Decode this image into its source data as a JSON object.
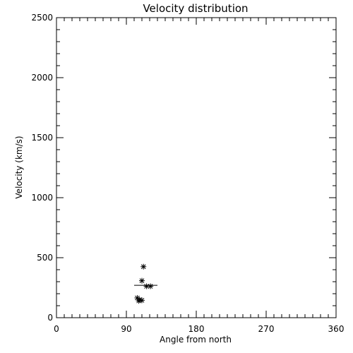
{
  "chart_data": {
    "type": "scatter",
    "title": "Velocity distribution",
    "xlabel": "Angle from north",
    "ylabel": "Velocity (km/s)",
    "xlim": [
      0,
      360
    ],
    "ylim": [
      0,
      2500
    ],
    "x_ticks": [
      0,
      90,
      180,
      270,
      360
    ],
    "y_ticks": [
      0,
      500,
      1000,
      1500,
      2000,
      2500
    ],
    "x_tick_labels": [
      "0",
      "90",
      "180",
      "270",
      "360"
    ],
    "y_tick_labels": [
      "0",
      "500",
      "1000",
      "1500",
      "2000",
      "2500"
    ],
    "x_minor_step": 10,
    "y_minor_step": 100,
    "grid": false,
    "marker": "asterisk",
    "points": [
      {
        "x": 112,
        "y": 425
      },
      {
        "x": 110,
        "y": 308
      },
      {
        "x": 116,
        "y": 262
      },
      {
        "x": 121,
        "y": 262
      },
      {
        "x": 104,
        "y": 165
      },
      {
        "x": 107,
        "y": 150
      },
      {
        "x": 110,
        "y": 145
      },
      {
        "x": 106,
        "y": 140
      }
    ],
    "mean_line": {
      "x_start": 100,
      "x_end": 130,
      "y": 270
    }
  }
}
